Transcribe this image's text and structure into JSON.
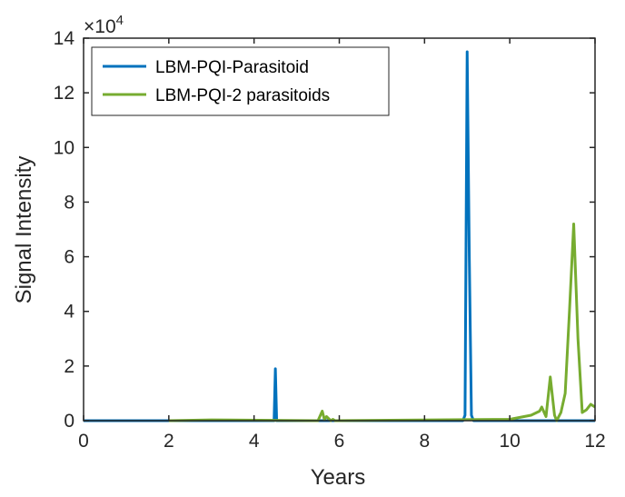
{
  "chart_data": {
    "type": "line",
    "xlabel": "Years",
    "ylabel": "Signal Intensity",
    "y_multiplier_base": "×10",
    "y_multiplier_exp": "4",
    "xlim": [
      0,
      12
    ],
    "ylim": [
      0,
      140000
    ],
    "xticks": [
      0,
      2,
      4,
      6,
      8,
      10,
      12
    ],
    "yticks": [
      0,
      20000,
      40000,
      60000,
      80000,
      100000,
      120000,
      140000
    ],
    "xtick_labels": [
      "0",
      "2",
      "4",
      "6",
      "8",
      "10",
      "12"
    ],
    "ytick_labels": [
      "0",
      "2",
      "4",
      "6",
      "8",
      "10",
      "12",
      "14"
    ],
    "grid": false,
    "legend_position": "top-left",
    "series": [
      {
        "name": "LBM-PQI-Parasitoid",
        "color": "#0072BD",
        "x": [
          0,
          4.47,
          4.5,
          4.53,
          8.9,
          8.95,
          9.0,
          9.05,
          9.1,
          9.15,
          12
        ],
        "y": [
          0,
          0,
          19000,
          0,
          0,
          2000,
          135000,
          60000,
          2000,
          0,
          0
        ]
      },
      {
        "name": "LBM-PQI-2 parasitoids",
        "color": "#77AC30",
        "x": [
          2,
          3,
          5.5,
          5.6,
          5.65,
          5.7,
          5.8,
          5.85,
          5.9,
          10,
          10.5,
          10.7,
          10.75,
          10.85,
          10.95,
          11.05,
          11.1,
          11.2,
          11.3,
          11.4,
          11.5,
          11.6,
          11.7,
          11.8,
          11.9,
          12
        ],
        "y": [
          0,
          300,
          0,
          3500,
          500,
          1500,
          0,
          500,
          0,
          500,
          2000,
          3500,
          5000,
          1500,
          16000,
          2000,
          0,
          3000,
          10000,
          40000,
          72000,
          30000,
          3000,
          4000,
          6000,
          5000
        ]
      }
    ]
  }
}
